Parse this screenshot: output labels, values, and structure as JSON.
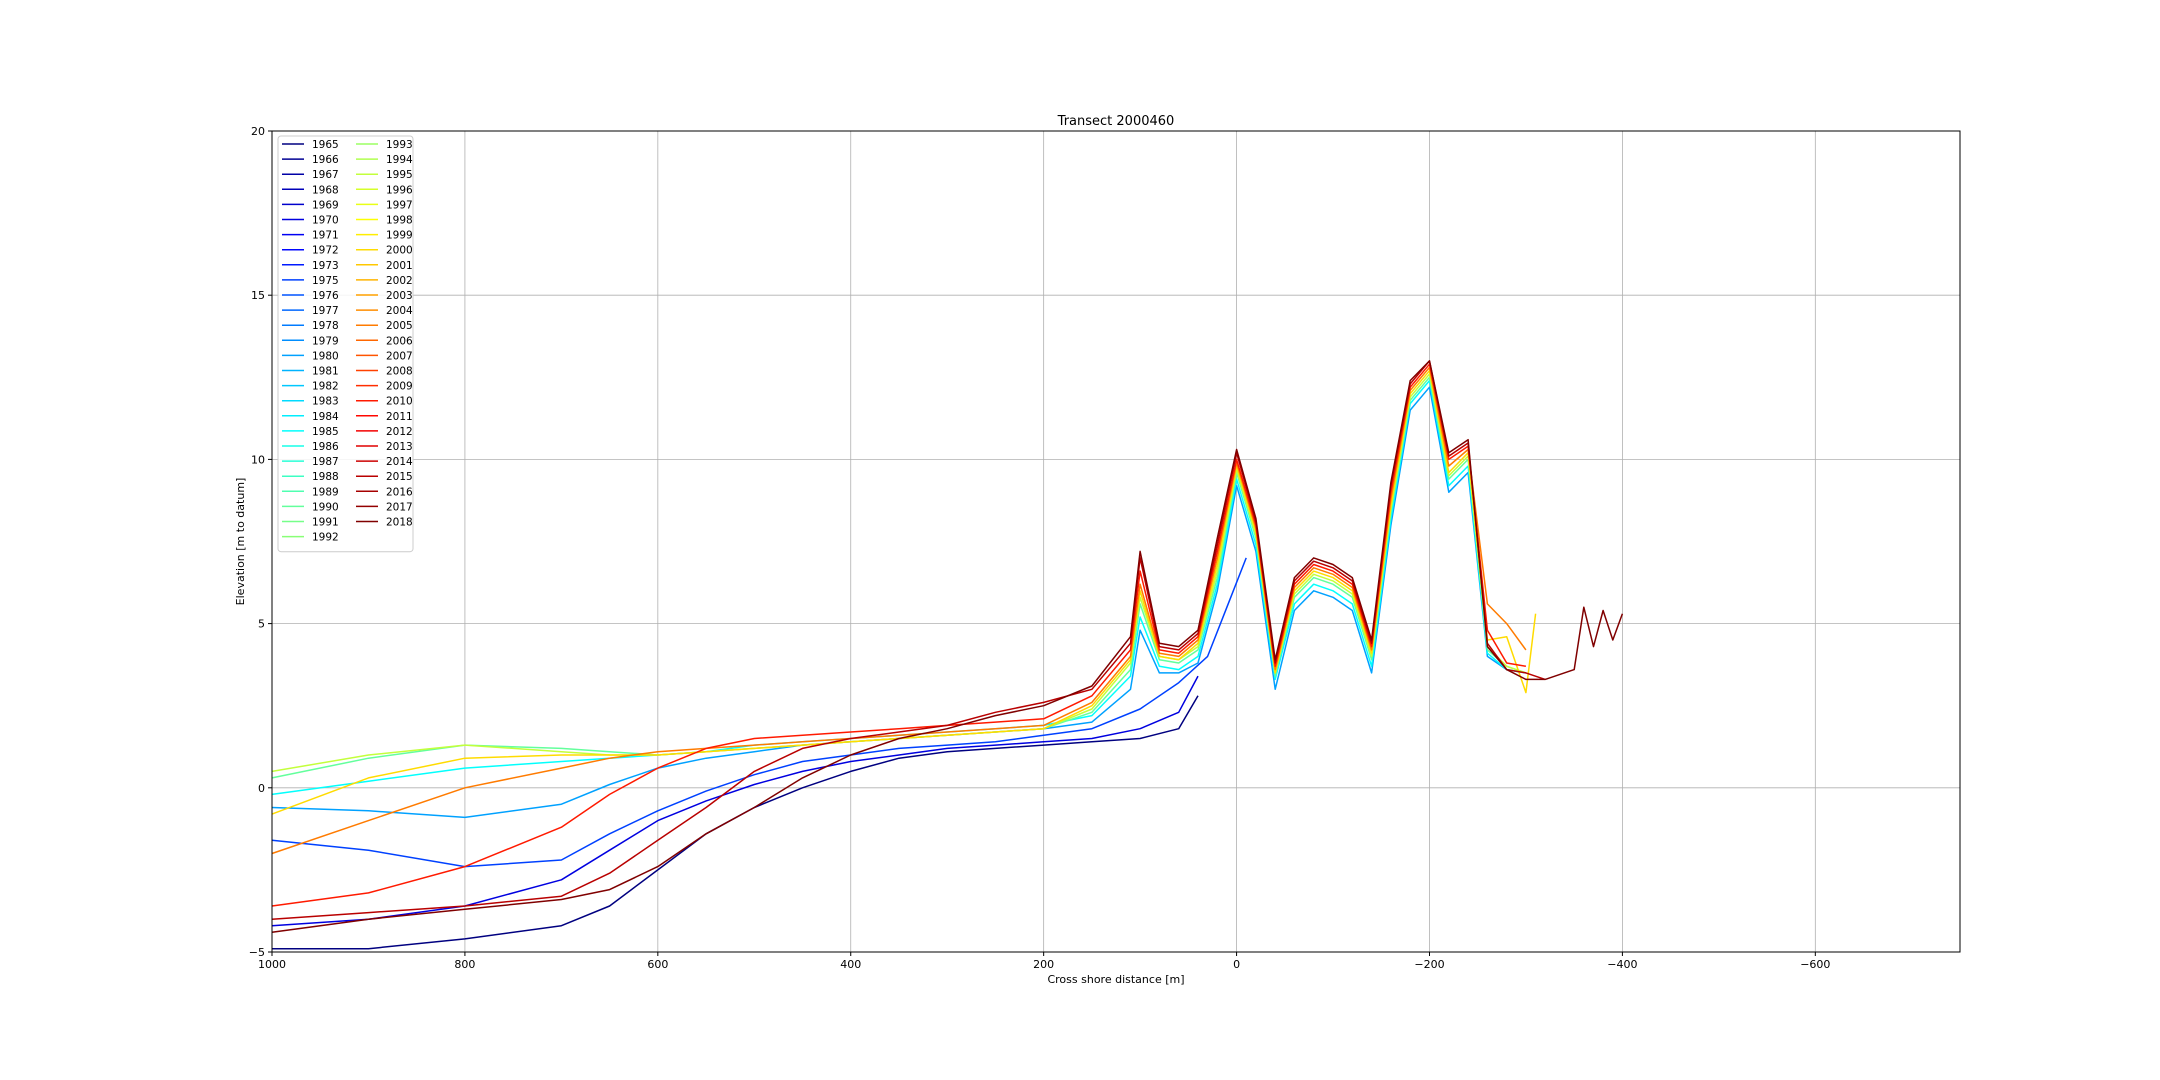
{
  "chart_data": {
    "type": "line",
    "title": "Transect 2000460",
    "xlabel": "Cross shore distance [m]",
    "ylabel": "Elevation [m to datum]",
    "xlim": [
      1000,
      -750
    ],
    "ylim": [
      -5,
      20
    ],
    "x_ticks": [
      1000,
      800,
      600,
      400,
      200,
      0,
      -200,
      -400,
      -600
    ],
    "x_tick_labels": [
      "1000",
      "800",
      "600",
      "400",
      "200",
      "0",
      "−200",
      "−400",
      "−600"
    ],
    "y_ticks": [
      -5,
      0,
      5,
      10,
      15,
      20
    ],
    "y_tick_labels": [
      "−5",
      "0",
      "5",
      "10",
      "15",
      "20"
    ],
    "grid": true,
    "legend_position": "top-left",
    "legend_columns": 2,
    "colormap": "jet",
    "color_range": [
      1965,
      2018
    ],
    "series": [
      {
        "name": "1965",
        "x": [
          1000,
          900,
          800,
          700,
          650,
          600,
          550,
          500,
          450,
          400,
          350,
          300,
          250,
          200,
          150,
          100,
          60,
          40
        ],
        "y": [
          -4.9,
          -4.9,
          -4.6,
          -4.2,
          -3.6,
          -2.5,
          -1.4,
          -0.6,
          0.0,
          0.5,
          0.9,
          1.1,
          1.2,
          1.3,
          1.4,
          1.5,
          1.8,
          2.8
        ]
      },
      {
        "name": "1970",
        "x": [
          1000,
          900,
          800,
          700,
          650,
          600,
          550,
          500,
          450,
          400,
          350,
          300,
          250,
          200,
          150,
          100,
          60,
          40
        ],
        "y": [
          -4.2,
          -4.0,
          -3.6,
          -2.8,
          -1.9,
          -1.0,
          -0.4,
          0.1,
          0.5,
          0.8,
          1.0,
          1.2,
          1.3,
          1.4,
          1.5,
          1.8,
          2.3,
          3.4
        ]
      },
      {
        "name": "1975",
        "x": [
          1000,
          900,
          800,
          700,
          650,
          600,
          550,
          500,
          450,
          400,
          350,
          300,
          250,
          200,
          150,
          100,
          60,
          30,
          10,
          -10
        ],
        "y": [
          -1.6,
          -1.9,
          -2.4,
          -2.2,
          -1.4,
          -0.7,
          -0.1,
          0.4,
          0.8,
          1.0,
          1.2,
          1.3,
          1.4,
          1.6,
          1.8,
          2.4,
          3.2,
          4.0,
          5.5,
          7.0
        ]
      },
      {
        "name": "1980",
        "x": [
          1000,
          900,
          800,
          700,
          650,
          600,
          550,
          500,
          450,
          400,
          350,
          300,
          250,
          200,
          150,
          110,
          100,
          80,
          60,
          40,
          20,
          0,
          -20,
          -40,
          -60,
          -80,
          -100,
          -120,
          -140,
          -160,
          -180,
          -200,
          -220,
          -240,
          -260,
          -280,
          -300
        ],
        "y": [
          -0.6,
          -0.7,
          -0.9,
          -0.5,
          0.1,
          0.6,
          0.9,
          1.1,
          1.3,
          1.4,
          1.5,
          1.6,
          1.7,
          1.8,
          2.0,
          3.0,
          4.8,
          3.5,
          3.5,
          3.8,
          6.0,
          9.2,
          7.2,
          3.0,
          5.4,
          6.0,
          5.8,
          5.4,
          3.5,
          8.0,
          11.5,
          12.2,
          9.0,
          9.6,
          4.0,
          3.6,
          3.5
        ]
      },
      {
        "name": "1985",
        "x": [
          1000,
          900,
          800,
          700,
          650,
          600,
          550,
          500,
          450,
          400,
          350,
          300,
          250,
          200,
          150,
          110,
          100,
          80,
          60,
          40,
          20,
          0,
          -20,
          -40,
          -60,
          -80,
          -100,
          -120,
          -140,
          -160,
          -180,
          -200,
          -220,
          -240,
          -260,
          -280,
          -300
        ],
        "y": [
          -0.2,
          0.2,
          0.6,
          0.8,
          0.9,
          1.0,
          1.1,
          1.3,
          1.4,
          1.5,
          1.6,
          1.7,
          1.8,
          1.9,
          2.2,
          3.4,
          5.2,
          3.7,
          3.6,
          4.0,
          6.2,
          9.4,
          7.4,
          3.3,
          5.6,
          6.2,
          6.0,
          5.6,
          3.7,
          8.2,
          11.7,
          12.4,
          9.2,
          9.8,
          4.1,
          3.6,
          3.5
        ]
      },
      {
        "name": "1990",
        "x": [
          1000,
          900,
          800,
          700,
          650,
          600,
          550,
          500,
          450,
          400,
          350,
          300,
          250,
          200,
          150,
          110,
          100,
          80,
          60,
          40,
          20,
          0,
          -20,
          -40,
          -60,
          -80,
          -100,
          -120,
          -140,
          -160,
          -180,
          -200,
          -220,
          -240,
          -260,
          -280,
          -300
        ],
        "y": [
          0.3,
          0.9,
          1.3,
          1.2,
          1.1,
          1.0,
          1.1,
          1.2,
          1.3,
          1.4,
          1.5,
          1.6,
          1.7,
          1.8,
          2.3,
          3.6,
          5.6,
          3.9,
          3.8,
          4.2,
          6.4,
          9.6,
          7.6,
          3.4,
          5.8,
          6.4,
          6.2,
          5.8,
          3.9,
          8.4,
          11.8,
          12.5,
          9.4,
          10.0,
          4.2,
          3.7,
          3.5
        ]
      },
      {
        "name": "1995",
        "x": [
          1000,
          900,
          800,
          700,
          650,
          600,
          550,
          500,
          450,
          400,
          350,
          300,
          250,
          200,
          150,
          110,
          100,
          80,
          60,
          40,
          20,
          0,
          -20,
          -40,
          -60,
          -80,
          -100,
          -120,
          -140,
          -160,
          -180,
          -200,
          -220,
          -240,
          -260,
          -280,
          -300
        ],
        "y": [
          0.5,
          1.0,
          1.3,
          1.1,
          1.0,
          1.0,
          1.1,
          1.2,
          1.3,
          1.4,
          1.5,
          1.6,
          1.7,
          1.8,
          2.4,
          3.8,
          5.8,
          4.0,
          3.9,
          4.3,
          6.6,
          9.7,
          7.7,
          3.5,
          5.9,
          6.5,
          6.3,
          5.9,
          4.0,
          8.5,
          11.9,
          12.6,
          9.5,
          10.1,
          4.3,
          3.7,
          3.5
        ]
      },
      {
        "name": "2000",
        "x": [
          1000,
          900,
          800,
          700,
          650,
          600,
          550,
          500,
          450,
          400,
          350,
          300,
          250,
          200,
          150,
          110,
          100,
          80,
          60,
          40,
          20,
          0,
          -20,
          -40,
          -60,
          -80,
          -100,
          -120,
          -140,
          -160,
          -180,
          -200,
          -220,
          -240,
          -260,
          -280,
          -300,
          -310
        ],
        "y": [
          -0.8,
          0.3,
          0.9,
          1.0,
          1.0,
          1.0,
          1.1,
          1.2,
          1.3,
          1.4,
          1.5,
          1.6,
          1.7,
          1.8,
          2.5,
          3.9,
          6.0,
          4.0,
          3.9,
          4.4,
          6.8,
          9.8,
          7.8,
          3.5,
          6.0,
          6.6,
          6.4,
          6.0,
          4.1,
          8.6,
          12.0,
          12.7,
          9.6,
          10.2,
          4.5,
          4.6,
          2.9,
          5.3
        ]
      },
      {
        "name": "2005",
        "x": [
          1000,
          900,
          800,
          700,
          650,
          600,
          550,
          500,
          450,
          400,
          350,
          300,
          250,
          200,
          150,
          110,
          100,
          80,
          60,
          40,
          20,
          0,
          -20,
          -40,
          -60,
          -80,
          -100,
          -120,
          -140,
          -160,
          -180,
          -200,
          -220,
          -240,
          -260,
          -280,
          -300
        ],
        "y": [
          -2.0,
          -1.0,
          0.0,
          0.6,
          0.9,
          1.1,
          1.2,
          1.3,
          1.4,
          1.5,
          1.6,
          1.7,
          1.8,
          1.9,
          2.6,
          4.0,
          6.2,
          4.1,
          4.0,
          4.5,
          7.0,
          9.9,
          7.9,
          3.6,
          6.1,
          6.7,
          6.5,
          6.1,
          4.2,
          8.8,
          12.1,
          12.8,
          9.8,
          10.3,
          5.6,
          5.0,
          4.2
        ]
      },
      {
        "name": "2010",
        "x": [
          1000,
          900,
          800,
          700,
          650,
          600,
          550,
          500,
          450,
          400,
          350,
          300,
          250,
          200,
          150,
          110,
          100,
          80,
          60,
          40,
          20,
          0,
          -20,
          -40,
          -60,
          -80,
          -100,
          -120,
          -140,
          -160,
          -180,
          -200,
          -220,
          -240,
          -260,
          -280,
          -300
        ],
        "y": [
          -3.6,
          -3.2,
          -2.4,
          -1.2,
          -0.2,
          0.6,
          1.2,
          1.5,
          1.6,
          1.7,
          1.8,
          1.9,
          2.0,
          2.1,
          2.8,
          4.2,
          6.6,
          4.2,
          4.1,
          4.6,
          7.2,
          10.0,
          8.0,
          3.7,
          6.2,
          6.8,
          6.6,
          6.2,
          4.3,
          9.0,
          12.2,
          12.9,
          10.0,
          10.4,
          4.8,
          3.8,
          3.7
        ]
      },
      {
        "name": "2015",
        "x": [
          1000,
          900,
          800,
          700,
          650,
          600,
          550,
          500,
          450,
          400,
          350,
          300,
          250,
          200,
          150,
          110,
          100,
          80,
          60,
          40,
          20,
          0,
          -20,
          -40,
          -60,
          -80,
          -100,
          -120,
          -140,
          -160,
          -180,
          -200,
          -220,
          -240,
          -260,
          -280,
          -300,
          -320
        ],
        "y": [
          -4.0,
          -3.8,
          -3.6,
          -3.3,
          -2.6,
          -1.6,
          -0.6,
          0.5,
          1.2,
          1.5,
          1.7,
          1.9,
          2.3,
          2.6,
          3.0,
          4.4,
          7.0,
          4.3,
          4.2,
          4.7,
          7.4,
          10.2,
          8.1,
          3.8,
          6.3,
          6.9,
          6.7,
          6.3,
          4.4,
          9.2,
          12.3,
          13.0,
          10.1,
          10.5,
          4.4,
          3.6,
          3.5,
          3.3
        ]
      },
      {
        "name": "2018",
        "x": [
          1000,
          900,
          800,
          700,
          650,
          600,
          550,
          500,
          450,
          400,
          350,
          300,
          250,
          200,
          150,
          110,
          100,
          80,
          60,
          40,
          20,
          0,
          -20,
          -40,
          -60,
          -80,
          -100,
          -120,
          -140,
          -160,
          -180,
          -200,
          -220,
          -240,
          -260,
          -280,
          -300,
          -320,
          -350,
          -360,
          -370,
          -380,
          -390,
          -400
        ],
        "y": [
          -4.4,
          -4.0,
          -3.7,
          -3.4,
          -3.1,
          -2.4,
          -1.4,
          -0.6,
          0.3,
          1.0,
          1.5,
          1.8,
          2.2,
          2.5,
          3.1,
          4.6,
          7.2,
          4.4,
          4.3,
          4.8,
          7.6,
          10.3,
          8.2,
          3.9,
          6.4,
          7.0,
          6.8,
          6.4,
          4.5,
          9.3,
          12.4,
          13.0,
          10.2,
          10.6,
          4.3,
          3.6,
          3.3,
          3.3,
          3.6,
          5.5,
          4.3,
          5.4,
          4.5,
          5.3
        ]
      }
    ],
    "legend_years": [
      1965,
      1966,
      1967,
      1968,
      1969,
      1970,
      1971,
      1972,
      1973,
      1975,
      1976,
      1977,
      1978,
      1979,
      1980,
      1981,
      1982,
      1983,
      1984,
      1985,
      1986,
      1987,
      1988,
      1989,
      1990,
      1991,
      1992,
      1993,
      1994,
      1995,
      1996,
      1997,
      1998,
      1999,
      2000,
      2001,
      2002,
      2003,
      2004,
      2005,
      2006,
      2007,
      2008,
      2009,
      2010,
      2011,
      2012,
      2013,
      2014,
      2015,
      2016,
      2017,
      2018
    ]
  }
}
